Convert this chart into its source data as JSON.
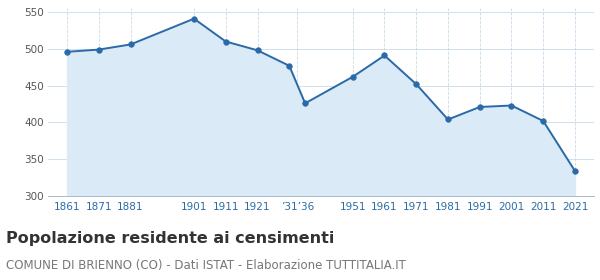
{
  "years": [
    1861,
    1871,
    1881,
    1901,
    1911,
    1921,
    1931,
    1936,
    1951,
    1961,
    1971,
    1981,
    1991,
    2001,
    2011,
    2021
  ],
  "population": [
    496,
    499,
    506,
    541,
    510,
    498,
    477,
    426,
    462,
    491,
    452,
    404,
    421,
    423,
    402,
    334
  ],
  "x_tick_positions": [
    1861,
    1871,
    1881,
    1901,
    1911,
    1921,
    1933.5,
    1951,
    1961,
    1971,
    1981,
    1991,
    2001,
    2011,
    2021
  ],
  "x_tick_labels": [
    "1861",
    "1871",
    "1881",
    "1901",
    "1911",
    "1921",
    "’31’36",
    "1951",
    "1961",
    "1971",
    "1981",
    "1991",
    "2001",
    "2011",
    "2021"
  ],
  "line_color": "#2b6aa8",
  "fill_color": "#daeaf7",
  "marker_color": "#2b6aa8",
  "background_color": "#ffffff",
  "grid_color_h": "#c8dcea",
  "grid_color_v": "#c8dcea",
  "ylim": [
    300,
    555
  ],
  "xlim": [
    1855,
    2027
  ],
  "yticks": [
    300,
    350,
    400,
    450,
    500,
    550
  ],
  "title": "Popolazione residente ai censimenti",
  "subtitle": "COMUNE DI BRIENNO (CO) - Dati ISTAT - Elaborazione TUTTITALIA.IT",
  "title_fontsize": 11.5,
  "subtitle_fontsize": 8.5
}
